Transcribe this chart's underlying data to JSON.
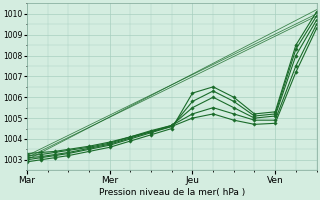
{
  "xlabel": "Pression niveau de la mer( hPa )",
  "bg_color": "#d4ede0",
  "grid_color": "#a8cfc0",
  "line_color": "#1a6b2a",
  "ylim": [
    1002.5,
    1010.5
  ],
  "xlim": [
    0,
    84
  ],
  "yticks": [
    1003,
    1004,
    1005,
    1006,
    1007,
    1008,
    1009,
    1010
  ],
  "day_ticks": [
    0,
    24,
    48,
    72
  ],
  "day_labels": [
    "Mar",
    "Mer",
    "Jeu",
    "Ven"
  ],
  "figsize": [
    3.2,
    2.0
  ],
  "dpi": 100,
  "series": [
    {
      "x": [
        0,
        4,
        8,
        12,
        18,
        24,
        30,
        36,
        42,
        48,
        54,
        60,
        66,
        72,
        78,
        84
      ],
      "y": [
        1002.9,
        1003.0,
        1003.1,
        1003.2,
        1003.4,
        1003.6,
        1003.9,
        1004.2,
        1004.5,
        1006.2,
        1006.5,
        1006.0,
        1005.2,
        1005.3,
        1008.5,
        1010.1
      ],
      "marker": true
    },
    {
      "x": [
        0,
        4,
        8,
        12,
        18,
        24,
        30,
        36,
        42,
        48,
        54,
        60,
        66,
        72,
        78,
        84
      ],
      "y": [
        1003.0,
        1003.1,
        1003.2,
        1003.3,
        1003.5,
        1003.7,
        1004.0,
        1004.3,
        1004.6,
        1005.8,
        1006.3,
        1005.8,
        1005.1,
        1005.2,
        1008.3,
        1009.9
      ],
      "marker": true
    },
    {
      "x": [
        0,
        4,
        8,
        12,
        18,
        24,
        30,
        36,
        42,
        48,
        54,
        60,
        66,
        72,
        78,
        84
      ],
      "y": [
        1003.1,
        1003.15,
        1003.25,
        1003.35,
        1003.55,
        1003.75,
        1004.05,
        1004.35,
        1004.65,
        1005.5,
        1006.0,
        1005.5,
        1005.0,
        1005.1,
        1008.0,
        1009.7
      ],
      "marker": true
    },
    {
      "x": [
        0,
        4,
        8,
        12,
        18,
        24,
        30,
        36,
        42,
        48,
        54,
        60,
        66,
        72,
        78,
        84
      ],
      "y": [
        1003.2,
        1003.25,
        1003.35,
        1003.45,
        1003.6,
        1003.8,
        1004.1,
        1004.4,
        1004.65,
        1005.2,
        1005.5,
        1005.2,
        1004.9,
        1004.9,
        1007.5,
        1009.5
      ],
      "marker": true
    },
    {
      "x": [
        0,
        4,
        8,
        12,
        18,
        24,
        30,
        36,
        42,
        48,
        54,
        60,
        66,
        72,
        78,
        84
      ],
      "y": [
        1003.3,
        1003.35,
        1003.4,
        1003.5,
        1003.65,
        1003.85,
        1004.1,
        1004.35,
        1004.6,
        1005.0,
        1005.2,
        1004.9,
        1004.7,
        1004.75,
        1007.2,
        1009.3
      ],
      "marker": true
    },
    {
      "x": [
        0,
        84
      ],
      "y": [
        1003.0,
        1010.2
      ],
      "marker": false
    },
    {
      "x": [
        0,
        84
      ],
      "y": [
        1003.1,
        1009.9
      ],
      "marker": false
    },
    {
      "x": [
        0,
        84
      ],
      "y": [
        1003.2,
        1010.0
      ],
      "marker": false
    }
  ]
}
